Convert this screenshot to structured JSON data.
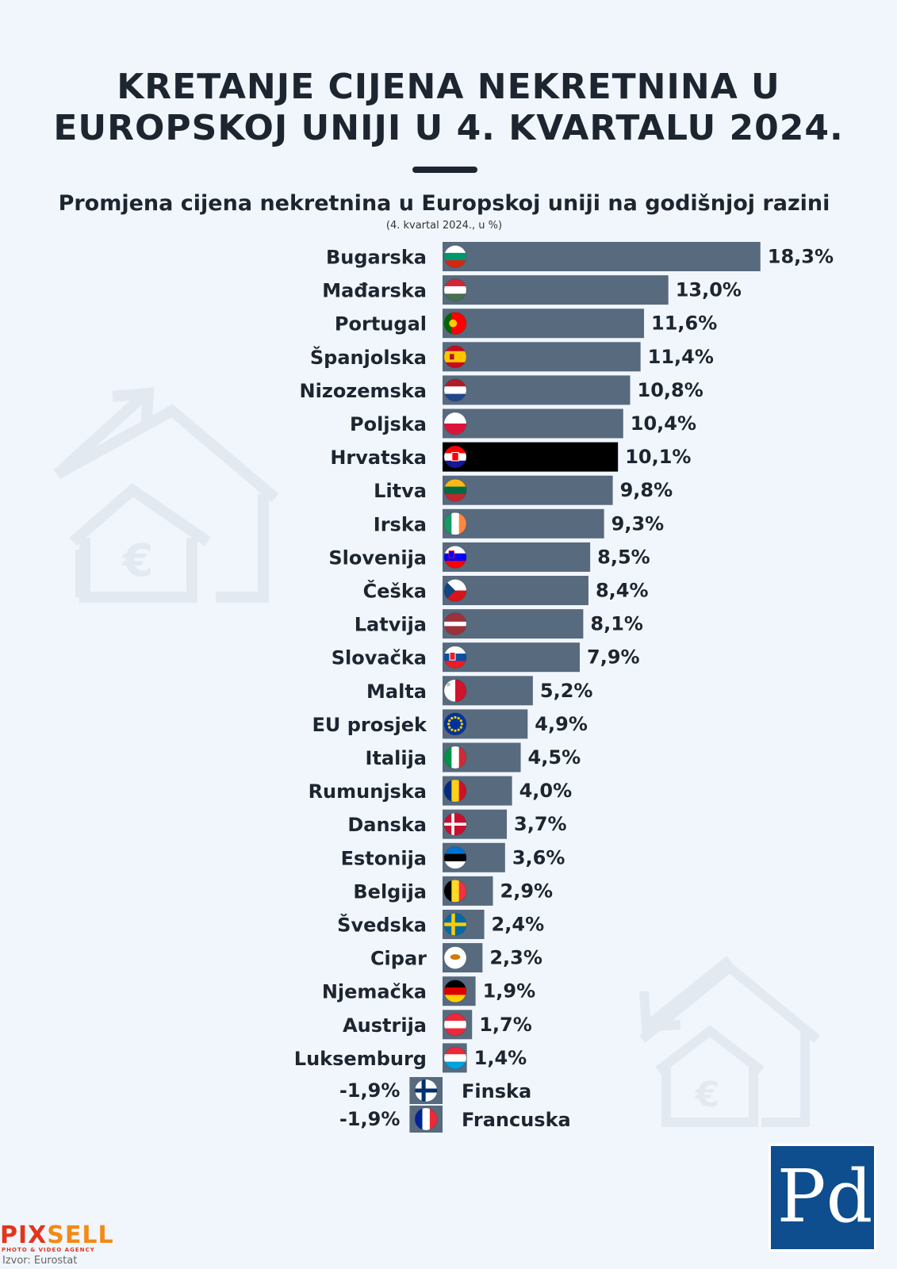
{
  "title_line1": "KRETANJE CIJENA NEKRETNINA U",
  "title_line2": "EUROPSKOJ UNIJI U 4. KVARTALU 2024.",
  "subtitle": "Promjena cijena nekretnina u Europskoj uniji na godišnjoj razini",
  "note": "(4. kvartal 2024., u %)",
  "source": "Izvor: Eurostat",
  "agency_logo_word_part1": "PIX",
  "agency_logo_word_part2": "SELL",
  "agency_logo_sub": "PHOTO & VIDEO AGENCY",
  "publisher_logo": "Pd",
  "colors": {
    "bar": "#576a7e",
    "highlight": "#000000",
    "text": "#1d2630",
    "background": "#f1f6fc"
  },
  "chart_data": {
    "type": "bar",
    "orientation": "horizontal",
    "title": "Promjena cijena nekretnina u Europskoj uniji na godišnjoj razini",
    "unit": "%",
    "highlight": "Hrvatska",
    "categories": [
      "Bugarska",
      "Mađarska",
      "Portugal",
      "Španjolska",
      "Nizozemska",
      "Poljska",
      "Hrvatska",
      "Litva",
      "Irska",
      "Slovenija",
      "Češka",
      "Latvija",
      "Slovačka",
      "Malta",
      "EU prosjek",
      "Italija",
      "Rumunjska",
      "Danska",
      "Estonija",
      "Belgija",
      "Švedska",
      "Cipar",
      "Njemačka",
      "Austrija",
      "Luksemburg",
      "Finska",
      "Francuska"
    ],
    "values": [
      18.3,
      13.0,
      11.6,
      11.4,
      10.8,
      10.4,
      10.1,
      9.8,
      9.3,
      8.5,
      8.4,
      8.1,
      7.9,
      5.2,
      4.9,
      4.5,
      4.0,
      3.7,
      3.6,
      2.9,
      2.4,
      2.3,
      1.9,
      1.7,
      1.4,
      -1.9,
      -1.9
    ],
    "value_labels": [
      "18,3%",
      "13,0%",
      "11,6%",
      "11,4%",
      "10,8%",
      "10,4%",
      "10,1%",
      "9,8%",
      "9,3%",
      "8,5%",
      "8,4%",
      "8,1%",
      "7,9%",
      "5,2%",
      "4,9%",
      "4,5%",
      "4,0%",
      "3,7%",
      "3,6%",
      "2,9%",
      "2,4%",
      "2,3%",
      "1,9%",
      "1,7%",
      "1,4%",
      "-1,9%",
      "-1,9%"
    ],
    "flags": [
      "bg",
      "hu",
      "pt",
      "es",
      "nl",
      "pl",
      "hr",
      "lt",
      "ie",
      "si",
      "cz",
      "lv",
      "sk",
      "mt",
      "eu",
      "it",
      "ro",
      "dk",
      "ee",
      "be",
      "se",
      "cy",
      "de",
      "at",
      "lu",
      "fi",
      "fr"
    ],
    "xlim": [
      -1.9,
      18.3
    ]
  }
}
